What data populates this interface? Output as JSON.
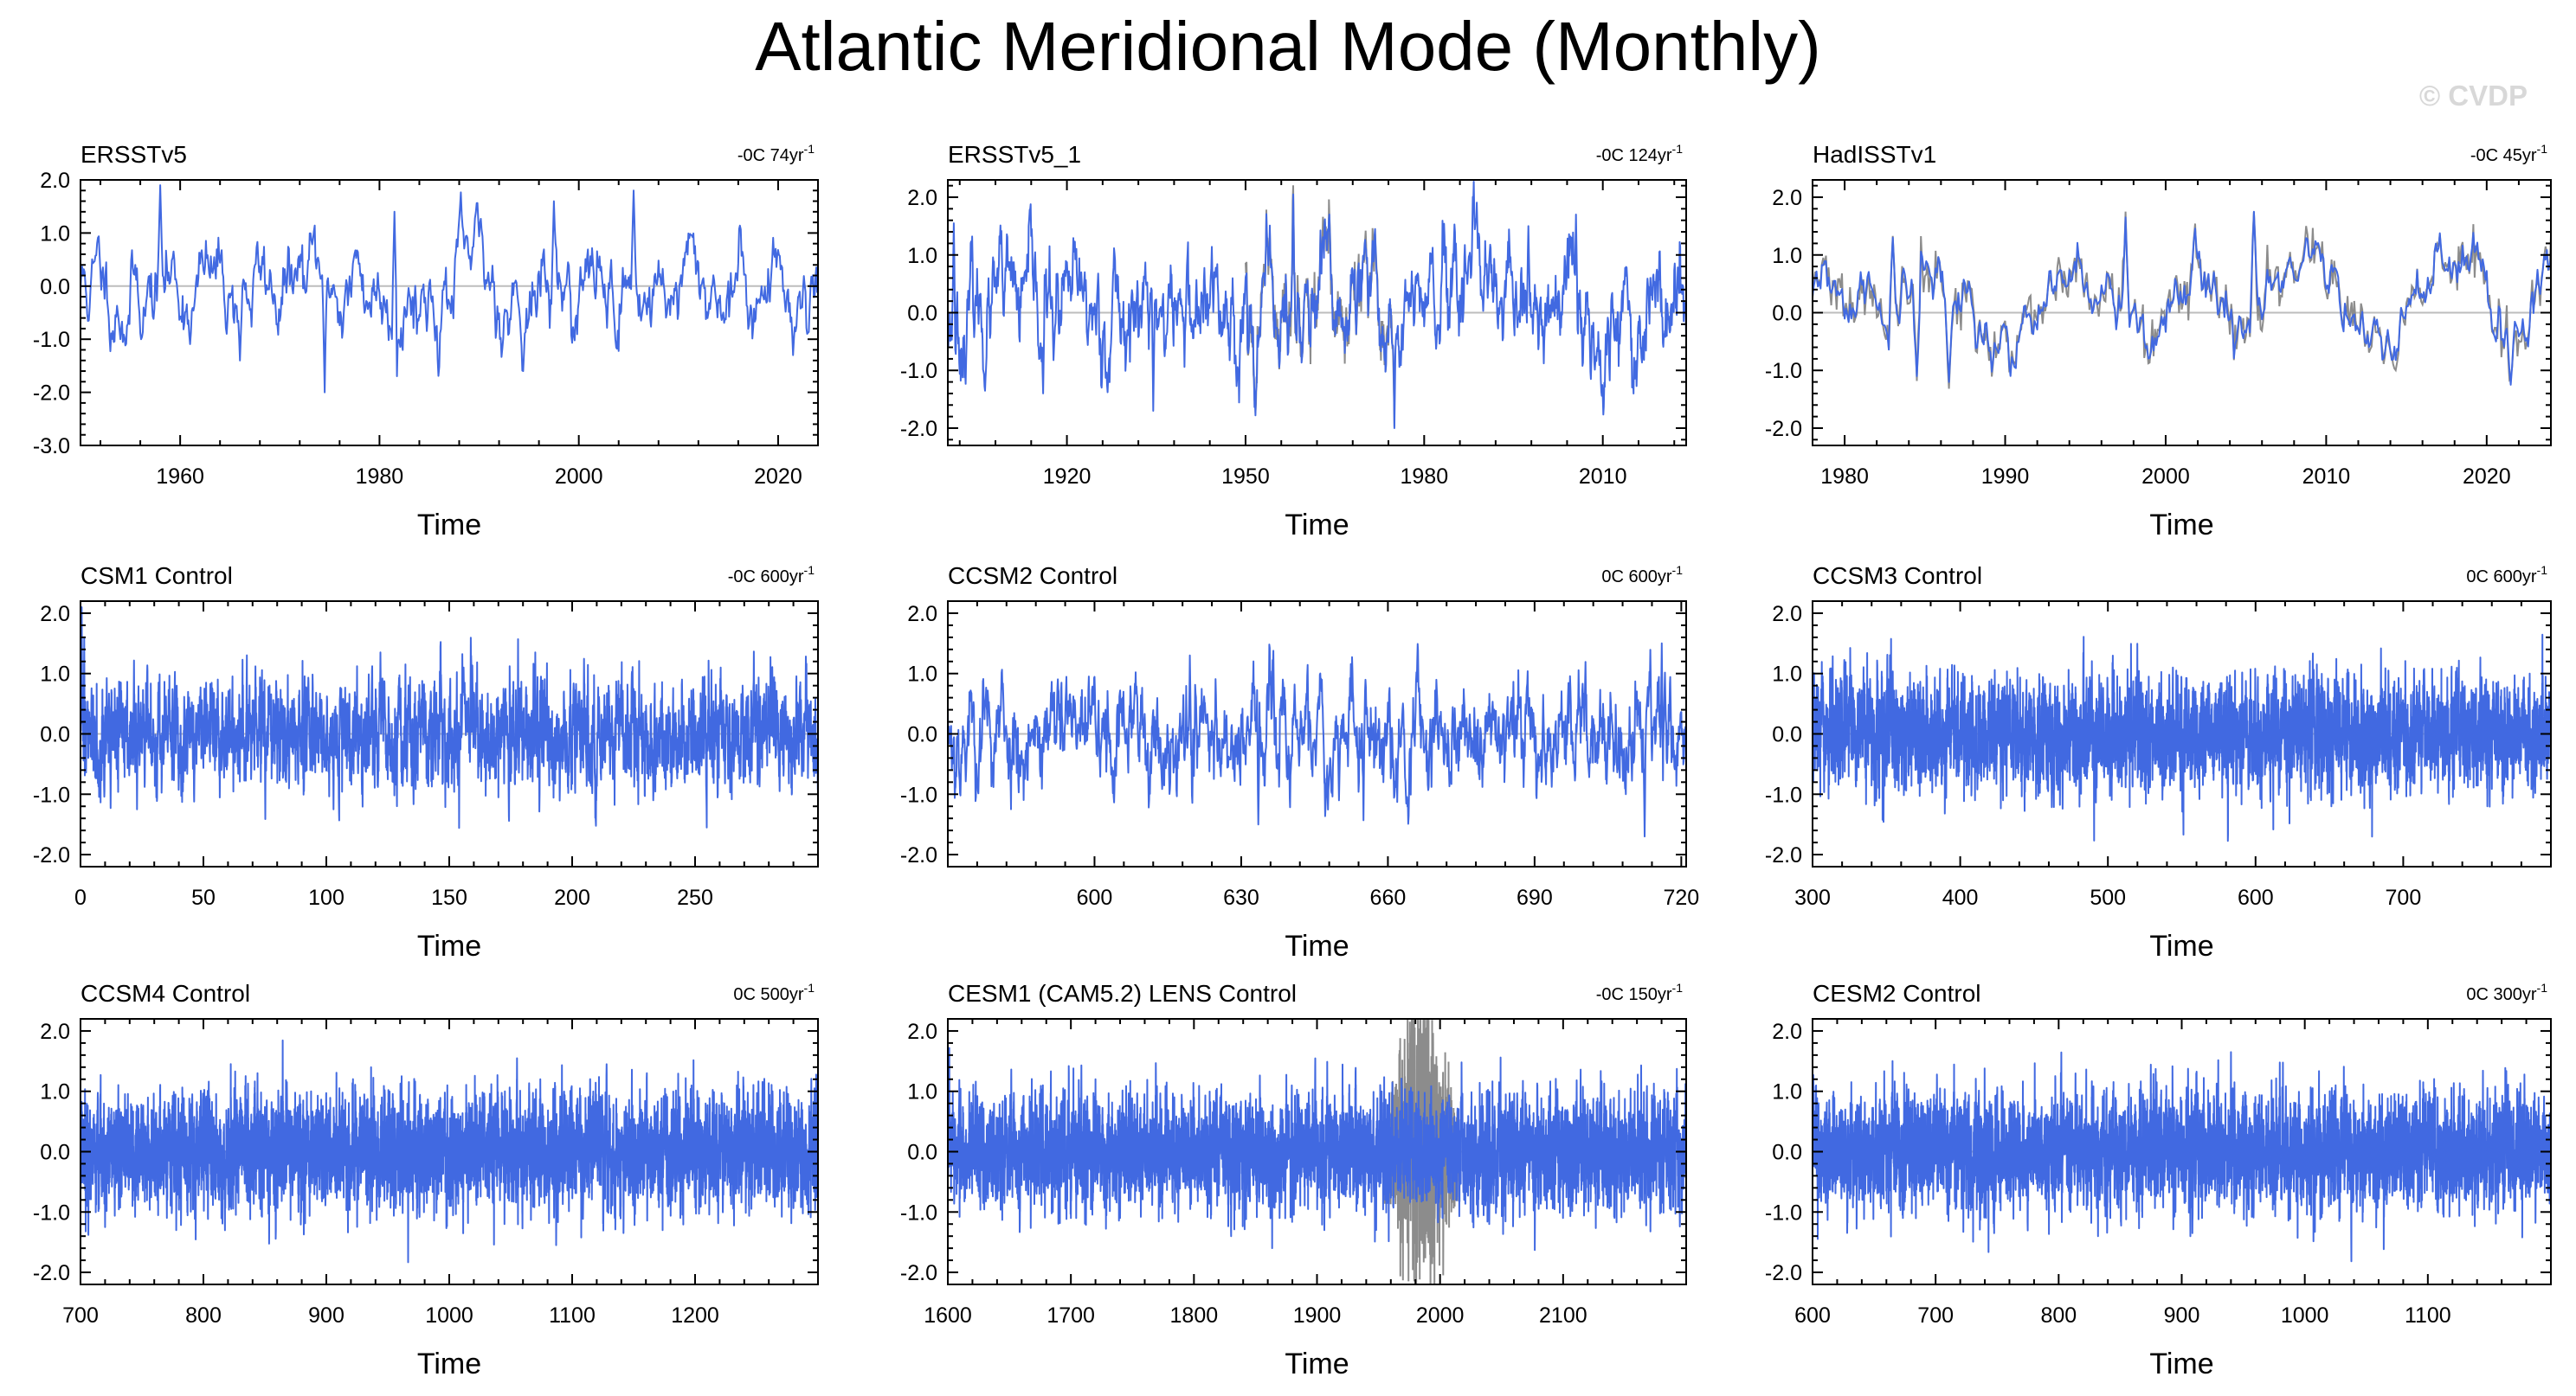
{
  "figure_title": "Atlantic Meridional Mode (Monthly)",
  "credit": "© CVDP",
  "colors": {
    "series": "#4169e1",
    "secondary": "#8c8c8c",
    "zero_line": "#bdbdbd",
    "frame": "#000000"
  },
  "chart_data": [
    {
      "type": "line",
      "title": "ERSSTv5",
      "trend_text": "-0C 74yr",
      "trend_unit_sup": "-1",
      "xlabel": "Time",
      "ylabel": "",
      "xlim": [
        1950,
        2024
      ],
      "ylim": [
        -3.0,
        2.0
      ],
      "xticks": [
        1960,
        1980,
        2000,
        2020
      ],
      "yticks": [
        -3.0,
        -2.0,
        -1.0,
        0.0,
        1.0,
        2.0
      ],
      "xtick_labels": [
        "1960",
        "1980",
        "2000",
        "2020"
      ],
      "ytick_labels": [
        "-3.0",
        "-2.0",
        "-1.0",
        "0.0",
        "1.0",
        "2.0"
      ],
      "secondary_series": false,
      "amp": 0.6,
      "persistence": 0.9,
      "seed": 11,
      "extremes": [
        [
          1958.0,
          1.9
        ],
        [
          1974.5,
          -2.0
        ],
        [
          2005.5,
          1.8
        ],
        [
          1997.5,
          1.6
        ],
        [
          1981.5,
          1.4
        ],
        [
          2021.5,
          -1.3
        ],
        [
          1954.0,
          -1.0
        ],
        [
          1966.0,
          -1.4
        ]
      ]
    },
    {
      "type": "line",
      "title": "ERSSTv5_1",
      "trend_text": "-0C 124yr",
      "trend_unit_sup": "-1",
      "xlabel": "Time",
      "ylabel": "",
      "xlim": [
        1900,
        2024
      ],
      "ylim": [
        -2.3,
        2.3
      ],
      "xticks": [
        1920,
        1950,
        1980,
        2010
      ],
      "yticks": [
        -2.0,
        -1.0,
        0.0,
        1.0,
        2.0
      ],
      "xtick_labels": [
        "1920",
        "1950",
        "1980",
        "2010"
      ],
      "ytick_labels": [
        "-2.0",
        "-1.0",
        "0.0",
        "1.0",
        "2.0"
      ],
      "secondary_series": true,
      "secondary_range": [
        1950,
        1975
      ],
      "amp": 0.6,
      "persistence": 0.88,
      "seed": 23,
      "extremes": [
        [
          1901.0,
          1.55
        ],
        [
          1958.0,
          2.05
        ],
        [
          1975.0,
          -2.0
        ],
        [
          1934.5,
          -1.7
        ],
        [
          1916.0,
          -1.4
        ],
        [
          1997.5,
          1.5
        ],
        [
          2005.5,
          1.7
        ]
      ]
    },
    {
      "type": "line",
      "title": "HadISSTv1",
      "trend_text": "-0C 45yr",
      "trend_unit_sup": "-1",
      "xlabel": "Time",
      "ylabel": "",
      "xlim": [
        1978,
        2024
      ],
      "ylim": [
        -2.3,
        2.3
      ],
      "xticks": [
        1980,
        1990,
        2000,
        2010,
        2020
      ],
      "yticks": [
        -2.0,
        -1.0,
        0.0,
        1.0,
        2.0
      ],
      "xtick_labels": [
        "1980",
        "1990",
        "2000",
        "2010",
        "2020"
      ],
      "ytick_labels": [
        "-2.0",
        "-1.0",
        "0.0",
        "1.0",
        "2.0"
      ],
      "secondary_series": true,
      "secondary_range": [
        1978,
        2024
      ],
      "amp": 0.55,
      "persistence": 0.93,
      "seed": 31,
      "extremes": [
        [
          2005.5,
          1.75
        ],
        [
          1997.5,
          1.65
        ],
        [
          1984.5,
          -1.1
        ],
        [
          1986.5,
          -1.2
        ],
        [
          2021.5,
          -1.25
        ],
        [
          1983.0,
          1.3
        ],
        [
          2024.0,
          0.95
        ]
      ]
    },
    {
      "type": "line",
      "title": "CSM1 Control",
      "trend_text": "-0C 600yr",
      "trend_unit_sup": "-1",
      "xlabel": "Time",
      "ylabel": "",
      "xlim": [
        0,
        300
      ],
      "ylim": [
        -2.2,
        2.2
      ],
      "xticks": [
        0,
        50,
        100,
        150,
        200,
        250
      ],
      "yticks": [
        -2.0,
        -1.0,
        0.0,
        1.0,
        2.0
      ],
      "xtick_labels": [
        "0",
        "50",
        "100",
        "150",
        "200",
        "250"
      ],
      "ytick_labels": [
        "-2.0",
        "-1.0",
        "0.0",
        "1.0",
        "2.0"
      ],
      "secondary_series": false,
      "amp": 0.45,
      "persistence": 0.55,
      "seed": 41,
      "extremes": [
        [
          0.5,
          2.1
        ],
        [
          1.5,
          1.6
        ],
        [
          23.0,
          -1.25
        ],
        [
          122.0,
          1.35
        ],
        [
          185.0,
          1.35
        ],
        [
          233.0,
          -1.1
        ]
      ]
    },
    {
      "type": "line",
      "title": "CCSM2 Control",
      "trend_text": "0C 600yr",
      "trend_unit_sup": "-1",
      "xlabel": "Time",
      "ylabel": "",
      "xlim": [
        570,
        721
      ],
      "ylim": [
        -2.2,
        2.2
      ],
      "xticks": [
        600,
        630,
        660,
        690,
        720
      ],
      "yticks": [
        -2.0,
        -1.0,
        0.0,
        1.0,
        2.0
      ],
      "xtick_labels": [
        "600",
        "630",
        "660",
        "690",
        "720"
      ],
      "ytick_labels": [
        "-2.0",
        "-1.0",
        "0.0",
        "1.0",
        "2.0"
      ],
      "secondary_series": false,
      "amp": 0.5,
      "persistence": 0.8,
      "seed": 53,
      "extremes": [
        [
          716.0,
          1.5
        ],
        [
          712.5,
          -1.7
        ],
        [
          633.5,
          -1.5
        ],
        [
          619.5,
          1.3
        ],
        [
          650.0,
          -1.1
        ]
      ]
    },
    {
      "type": "line",
      "title": "CCSM3 Control",
      "trend_text": "0C 600yr",
      "trend_unit_sup": "-1",
      "xlabel": "Time",
      "ylabel": "",
      "xlim": [
        300,
        800
      ],
      "ylim": [
        -2.2,
        2.2
      ],
      "xticks": [
        300,
        400,
        500,
        600,
        700
      ],
      "yticks": [
        -2.0,
        -1.0,
        0.0,
        1.0,
        2.0
      ],
      "xtick_labels": [
        "300",
        "400",
        "500",
        "600",
        "700"
      ],
      "ytick_labels": [
        "-2.0",
        "-1.0",
        "0.0",
        "1.0",
        "2.0"
      ],
      "secondary_series": false,
      "amp": 0.45,
      "persistence": 0.5,
      "seed": 67,
      "extremes": [
        [
          757.0,
          -1.2
        ],
        [
          544.0,
          1.1
        ],
        [
          410.0,
          -1.1
        ],
        [
          690.0,
          1.05
        ]
      ]
    },
    {
      "type": "line",
      "title": "CCSM4 Control",
      "trend_text": "0C 500yr",
      "trend_unit_sup": "-1",
      "xlabel": "Time",
      "ylabel": "",
      "xlim": [
        700,
        1300
      ],
      "ylim": [
        -2.2,
        2.2
      ],
      "xticks": [
        700,
        800,
        900,
        1000,
        1100,
        1200
      ],
      "yticks": [
        -2.0,
        -1.0,
        0.0,
        1.0,
        2.0
      ],
      "xtick_labels": [
        "700",
        "800",
        "900",
        "1000",
        "1100",
        "1200"
      ],
      "ytick_labels": [
        "-2.0",
        "-1.0",
        "0.0",
        "1.0",
        "2.0"
      ],
      "secondary_series": false,
      "amp": 0.45,
      "persistence": 0.5,
      "seed": 79,
      "extremes": [
        [
          1087.0,
          -1.55
        ],
        [
          844.0,
          1.3
        ],
        [
          1263.0,
          1.0
        ],
        [
          720.0,
          -1.25
        ]
      ]
    },
    {
      "type": "line",
      "title": "CESM1 (CAM5.2) LENS Control",
      "trend_text": "-0C 150yr",
      "trend_unit_sup": "-1",
      "xlabel": "Time",
      "ylabel": "",
      "xlim": [
        1600,
        2200
      ],
      "ylim": [
        -2.2,
        2.2
      ],
      "xticks": [
        1600,
        1700,
        1800,
        1900,
        2000,
        2100
      ],
      "yticks": [
        -2.0,
        -1.0,
        0.0,
        1.0,
        2.0
      ],
      "xtick_labels": [
        "1600",
        "1700",
        "1800",
        "1900",
        "2000",
        "2100"
      ],
      "ytick_labels": [
        "-2.0",
        "-1.0",
        "0.0",
        "1.0",
        "2.0"
      ],
      "secondary_series": true,
      "secondary_range": [
        1955,
        2015
      ],
      "secondary_amp": 2.4,
      "amp": 0.45,
      "persistence": 0.5,
      "seed": 97,
      "extremes": [
        [
          1720.0,
          1.2
        ],
        [
          1906.0,
          -1.3
        ],
        [
          2040.0,
          -1.2
        ],
        [
          1740.0,
          -1.1
        ]
      ]
    },
    {
      "type": "line",
      "title": "CESM2 Control",
      "trend_text": "0C 300yr",
      "trend_unit_sup": "-1",
      "xlabel": "Time",
      "ylabel": "",
      "xlim": [
        600,
        1200
      ],
      "ylim": [
        -2.2,
        2.2
      ],
      "xticks": [
        600,
        700,
        800,
        900,
        1000,
        1100
      ],
      "yticks": [
        -2.0,
        -1.0,
        0.0,
        1.0,
        2.0
      ],
      "xtick_labels": [
        "600",
        "700",
        "800",
        "900",
        "1000",
        "1100"
      ],
      "ytick_labels": [
        "-2.0",
        "-1.0",
        "0.0",
        "1.0",
        "2.0"
      ],
      "secondary_series": false,
      "amp": 0.45,
      "persistence": 0.5,
      "seed": 113,
      "extremes": [
        [
          940.0,
          1.65
        ],
        [
          832.0,
          -1.4
        ],
        [
          665.0,
          1.5
        ],
        [
          907.0,
          -1.4
        ]
      ]
    }
  ]
}
